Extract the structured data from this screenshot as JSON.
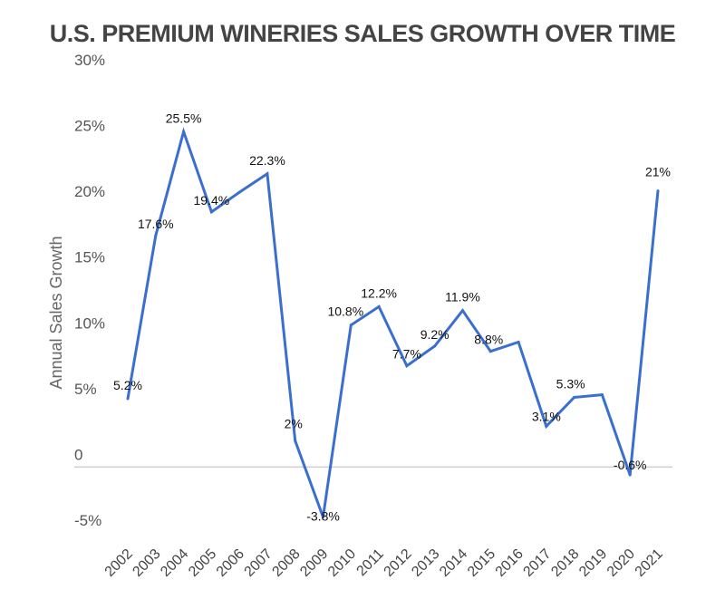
{
  "chart_data": {
    "type": "line",
    "title": "U.S. PREMIUM WINERIES SALES GROWTH OVER TIME",
    "xlabel": "",
    "ylabel": "Annual Sales Growth",
    "ylim": [
      -5,
      30
    ],
    "yticks": [
      30,
      25,
      20,
      15,
      10,
      5,
      0,
      -5
    ],
    "ytick_labels": [
      "30%",
      "25%",
      "20%",
      "15%",
      "10%",
      "5%",
      "0",
      "-5%"
    ],
    "grid": false,
    "zero_line": true,
    "legend": "none",
    "color": "#3a6fd0",
    "categories": [
      "2002",
      "2003",
      "2004",
      "2005",
      "2006",
      "2007",
      "2008",
      "2009",
      "2010",
      "2011",
      "2012",
      "2013",
      "2014",
      "2015",
      "2016",
      "2017",
      "2018",
      "2019",
      "2020",
      "2021"
    ],
    "series": [
      {
        "name": "Annual Sales Growth",
        "values": [
          5.2,
          17.6,
          25.5,
          19.4,
          20.9,
          22.3,
          2,
          -3.8,
          10.8,
          12.2,
          7.7,
          9.2,
          11.9,
          8.8,
          9.5,
          3.1,
          5.3,
          5.5,
          -0.6,
          21
        ],
        "labels": [
          "5.2%",
          "17.6%",
          "25.5%",
          "19.4%",
          null,
          "22.3%",
          "2%",
          "-3.8%",
          "10.8%",
          "12.2%",
          "7.7%",
          "9.2%",
          "11.9%",
          "8.8%",
          null,
          "3.1%",
          "5.3%",
          null,
          "-0.6%",
          "21%"
        ]
      }
    ]
  }
}
